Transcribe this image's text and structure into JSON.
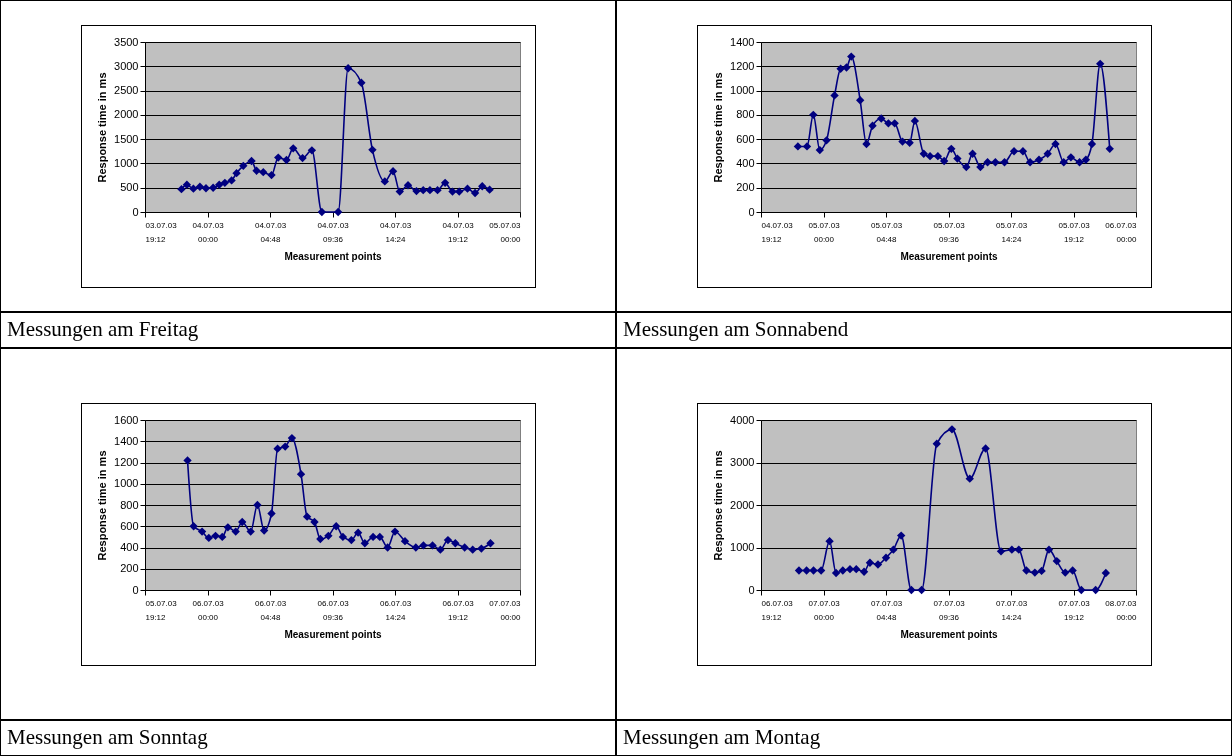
{
  "chart_data": [
    {
      "type": "line",
      "xlabel": "Measurement points",
      "ylabel": "Response time in ms",
      "annotations": [
        "Messungen am Freitag"
      ],
      "marker": "diamond",
      "line_style": "solid",
      "grid": "y",
      "legend": false,
      "x": [
        "--07-03T22:00",
        "--07-03T22:25",
        "--07-03T22:55",
        "--07-03T23:25",
        "--07-03T23:53",
        "--07-04T00:26",
        "--07-04T00:54",
        "--07-04T01:20",
        "--07-04T01:51",
        "--07-04T02:14",
        "--07-04T02:45",
        "--07-04T03:23",
        "--07-04T03:46",
        "--07-04T04:17",
        "--07-04T04:55",
        "--07-04T05:26",
        "--07-04T06:04",
        "--07-04T06:35",
        "--07-04T07:18",
        "--07-04T08:01",
        "--07-04T08:47",
        "--07-04T10:02",
        "--07-04T10:48",
        "--07-04T11:49",
        "--07-04T12:40",
        "--07-04T13:37",
        "--07-04T14:15",
        "--07-04T14:46",
        "--07-04T15:24",
        "--07-04T16:03",
        "--07-04T16:34",
        "--07-04T17:05",
        "--07-04T17:40",
        "--07-04T18:15",
        "--07-04T18:49",
        "--07-04T19:20",
        "--07-04T19:58",
        "--07-04T20:33",
        "--07-04T21:06",
        "--07-04T21:40"
      ],
      "series": [
        {
          "color": "#000080",
          "values": [
            470,
            560,
            480,
            520,
            490,
            500,
            560,
            600,
            650,
            800,
            950,
            1050,
            850,
            820,
            760,
            1120,
            1070,
            1310,
            1110,
            1270,
            0,
            0,
            2960,
            2660,
            1280,
            630,
            840,
            420,
            550,
            430,
            450,
            450,
            450,
            600,
            420,
            420,
            480,
            390,
            530,
            460
          ]
        }
      ],
      "xlim": [
        "--07-03T19:12",
        "--07-05T00:00"
      ],
      "xticks": [
        {
          "value": "--07-03T19:12",
          "label": "03.07.03 19:12"
        },
        {
          "value": "--07-04T00:00",
          "label": "04.07.03 00:00"
        },
        {
          "value": "--07-04T04:48",
          "label": "04.07.03 04:48"
        },
        {
          "value": "--07-04T09:36",
          "label": "04.07.03 09:36"
        },
        {
          "value": "--07-04T14:24",
          "label": "04.07.03 14:24"
        },
        {
          "value": "--07-04T19:12",
          "label": "04.07.03 19:12"
        },
        {
          "value": "--07-05T00:00",
          "label": "05.07.03 00:00"
        }
      ],
      "ylim": [
        0,
        3500
      ],
      "yticks": [
        0,
        500,
        1000,
        1500,
        2000,
        2500,
        3000,
        3500
      ]
    },
    {
      "type": "line",
      "xlabel": "Measurement points",
      "ylabel": "Response time in ms",
      "annotations": [
        "Messungen am Sonnabend"
      ],
      "marker": "diamond",
      "line_style": "solid",
      "grid": "y",
      "legend": false,
      "x": [
        "--07-04T22:02",
        "--07-04T22:44",
        "--07-04T23:13",
        "--07-04T23:43",
        "--07-05T00:14",
        "--07-05T00:51",
        "--07-05T01:19",
        "--07-05T01:46",
        "--07-05T02:08",
        "--07-05T02:49",
        "--07-05T03:18",
        "--07-05T03:46",
        "--07-05T04:26",
        "--07-05T04:59",
        "--07-05T05:28",
        "--07-05T06:04",
        "--07-05T06:37",
        "--07-05T07:01",
        "--07-05T07:42",
        "--07-05T08:11",
        "--07-05T08:47",
        "--07-05T09:16",
        "--07-05T09:49",
        "--07-05T10:17",
        "--07-05T10:58",
        "--07-05T11:27",
        "--07-05T12:03",
        "--07-05T12:36",
        "--07-05T13:12",
        "--07-05T13:54",
        "--07-05T14:38",
        "--07-05T15:19",
        "--07-05T15:52",
        "--07-05T16:33",
        "--07-05T17:13",
        "--07-05T17:49",
        "--07-05T18:27",
        "--07-05T19:00",
        "--07-05T19:40",
        "--07-05T20:09",
        "--07-05T20:37",
        "--07-05T21:15",
        "--07-05T21:59"
      ],
      "series": [
        {
          "color": "#000080",
          "values": [
            540,
            540,
            800,
            510,
            590,
            960,
            1180,
            1190,
            1280,
            920,
            560,
            710,
            770,
            730,
            730,
            580,
            570,
            750,
            480,
            460,
            460,
            420,
            520,
            440,
            370,
            480,
            370,
            410,
            410,
            410,
            500,
            500,
            410,
            430,
            480,
            560,
            410,
            450,
            410,
            430,
            560,
            1220,
            520
          ]
        }
      ],
      "xlim": [
        "--07-04T19:12",
        "--07-06T00:00"
      ],
      "xticks": [
        {
          "value": "--07-04T19:12",
          "label": "04.07.03 19:12"
        },
        {
          "value": "--07-05T00:00",
          "label": "05.07.03 00:00"
        },
        {
          "value": "--07-05T04:48",
          "label": "05.07.03 04:48"
        },
        {
          "value": "--07-05T09:36",
          "label": "05.07.03 09:36"
        },
        {
          "value": "--07-05T14:24",
          "label": "05.07.03 14:24"
        },
        {
          "value": "--07-05T19:12",
          "label": "05.07.03 19:12"
        },
        {
          "value": "--07-06T00:00",
          "label": "06.07.03 00:00"
        }
      ],
      "ylim": [
        0,
        1400
      ],
      "yticks": [
        0,
        200,
        400,
        600,
        800,
        1000,
        1200,
        1400
      ]
    },
    {
      "type": "line",
      "xlabel": "Measurement points",
      "ylabel": "Response time in ms",
      "annotations": [
        "Messungen am Sonntag"
      ],
      "marker": "diamond",
      "line_style": "solid",
      "grid": "y",
      "legend": false,
      "x": [
        "--07-05T22:28",
        "--07-05T22:56",
        "--07-05T23:35",
        "--07-06T00:06",
        "--07-06T00:37",
        "--07-06T01:08",
        "--07-06T01:34",
        "--07-06T02:10",
        "--07-06T02:40",
        "--07-06T03:19",
        "--07-06T03:50",
        "--07-06T04:21",
        "--07-06T04:55",
        "--07-06T05:23",
        "--07-06T05:58",
        "--07-06T06:29",
        "--07-06T07:11",
        "--07-06T07:39",
        "--07-06T08:13",
        "--07-06T08:40",
        "--07-06T09:17",
        "--07-06T09:53",
        "--07-06T10:24",
        "--07-06T11:03",
        "--07-06T11:34",
        "--07-06T12:05",
        "--07-06T12:43",
        "--07-06T13:14",
        "--07-06T13:50",
        "--07-06T14:24",
        "--07-06T15:10",
        "--07-06T16:00",
        "--07-06T16:35",
        "--07-06T17:17",
        "--07-06T17:53",
        "--07-06T18:28",
        "--07-06T19:02",
        "--07-06T19:45",
        "--07-06T20:22",
        "--07-06T21:02",
        "--07-06T21:44"
      ],
      "series": [
        {
          "color": "#000080",
          "values": [
            1220,
            600,
            550,
            490,
            510,
            500,
            590,
            550,
            640,
            550,
            800,
            560,
            720,
            1330,
            1350,
            1430,
            1090,
            690,
            640,
            480,
            510,
            600,
            500,
            470,
            540,
            440,
            500,
            500,
            400,
            550,
            460,
            400,
            420,
            420,
            380,
            470,
            440,
            400,
            380,
            390,
            440
          ]
        }
      ],
      "xlim": [
        "--07-05T19:12",
        "--07-07T00:00"
      ],
      "xticks": [
        {
          "value": "--07-05T19:12",
          "label": "05.07.03 19:12"
        },
        {
          "value": "--07-06T00:00",
          "label": "06.07.03 00:00"
        },
        {
          "value": "--07-06T04:48",
          "label": "06.07.03 04:48"
        },
        {
          "value": "--07-06T09:36",
          "label": "06.07.03 09:36"
        },
        {
          "value": "--07-06T14:24",
          "label": "06.07.03 14:24"
        },
        {
          "value": "--07-06T19:12",
          "label": "06.07.03 19:12"
        },
        {
          "value": "--07-07T00:00",
          "label": "07.07.03 00:00"
        }
      ],
      "ylim": [
        0,
        1600
      ],
      "yticks": [
        0,
        200,
        400,
        600,
        800,
        1000,
        1200,
        1400,
        1600
      ]
    },
    {
      "type": "line",
      "xlabel": "Measurement points",
      "ylabel": "Response time in ms",
      "annotations": [
        "Messungen am Montag"
      ],
      "marker": "diamond",
      "line_style": "solid",
      "grid": "y",
      "legend": false,
      "x": [
        "--07-06T22:07",
        "--07-06T22:42",
        "--07-06T23:14",
        "--07-06T23:49",
        "--07-07T00:28",
        "--07-07T00:58",
        "--07-07T01:29",
        "--07-07T02:02",
        "--07-07T02:31",
        "--07-07T03:07",
        "--07-07T03:34",
        "--07-07T04:11",
        "--07-07T04:48",
        "--07-07T05:22",
        "--07-07T05:58",
        "--07-07T06:45",
        "--07-07T07:32",
        "--07-07T08:42",
        "--07-07T09:52",
        "--07-07T11:14",
        "--07-07T12:27",
        "--07-07T13:38",
        "--07-07T14:28",
        "--07-07T15:00",
        "--07-07T15:35",
        "--07-07T16:14",
        "--07-07T16:45",
        "--07-07T17:19",
        "--07-07T17:55",
        "--07-07T18:34",
        "--07-07T19:08",
        "--07-07T19:48",
        "--07-07T20:54",
        "--07-07T21:41"
      ],
      "series": [
        {
          "color": "#000080",
          "values": [
            460,
            460,
            460,
            460,
            1150,
            400,
            460,
            490,
            490,
            430,
            640,
            600,
            760,
            950,
            1280,
            0,
            0,
            3440,
            3780,
            2620,
            3330,
            910,
            950,
            950,
            460,
            410,
            450,
            950,
            680,
            410,
            460,
            0,
            0,
            400
          ]
        }
      ],
      "xlim": [
        "--07-06T19:12",
        "--07-08T00:00"
      ],
      "xticks": [
        {
          "value": "--07-06T19:12",
          "label": "06.07.03 19:12"
        },
        {
          "value": "--07-07T00:00",
          "label": "07.07.03 00:00"
        },
        {
          "value": "--07-07T04:48",
          "label": "07.07.03 04:48"
        },
        {
          "value": "--07-07T09:36",
          "label": "07.07.03 09:36"
        },
        {
          "value": "--07-07T14:24",
          "label": "07.07.03 14:24"
        },
        {
          "value": "--07-07T19:12",
          "label": "07.07.03 19:12"
        },
        {
          "value": "--07-08T00:00",
          "label": "08.07.03 00:00"
        }
      ],
      "ylim": [
        0,
        4000
      ],
      "yticks": [
        0,
        1000,
        2000,
        3000,
        4000
      ]
    }
  ]
}
